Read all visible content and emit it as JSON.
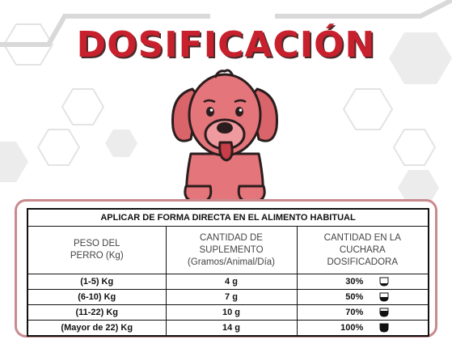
{
  "title": "DOSIFICACIÓN",
  "table": {
    "header": "APLICAR DE FORMA DIRECTA EN EL ALIMENTO HABITUAL",
    "columns": [
      [
        "PESO DEL",
        "PERRO (Kg)"
      ],
      [
        "CANTIDAD DE",
        "SUPLEMENTO",
        "(Gramos/Animal/Día)"
      ],
      [
        "CANTIDAD EN LA",
        "CUCHARA",
        "DOSIFICADORA"
      ]
    ],
    "rows": [
      {
        "weight": "(1-5) Kg",
        "amount": "4 g",
        "spoon": "30%",
        "fill": 0.3
      },
      {
        "weight": "(6-10) Kg",
        "amount": "7 g",
        "spoon": "50%",
        "fill": 0.5
      },
      {
        "weight": "(11-22) Kg",
        "amount": "10 g",
        "spoon": "70%",
        "fill": 0.7
      },
      {
        "weight": "(Mayor de 22) Kg",
        "amount": "14 g",
        "spoon": "100%",
        "fill": 1.0
      }
    ]
  },
  "colors": {
    "title": "#c8202c",
    "dog": "#e4757a",
    "border": "#c98a8d"
  },
  "icons": [
    "dog-illustration",
    "spoon-icon"
  ]
}
